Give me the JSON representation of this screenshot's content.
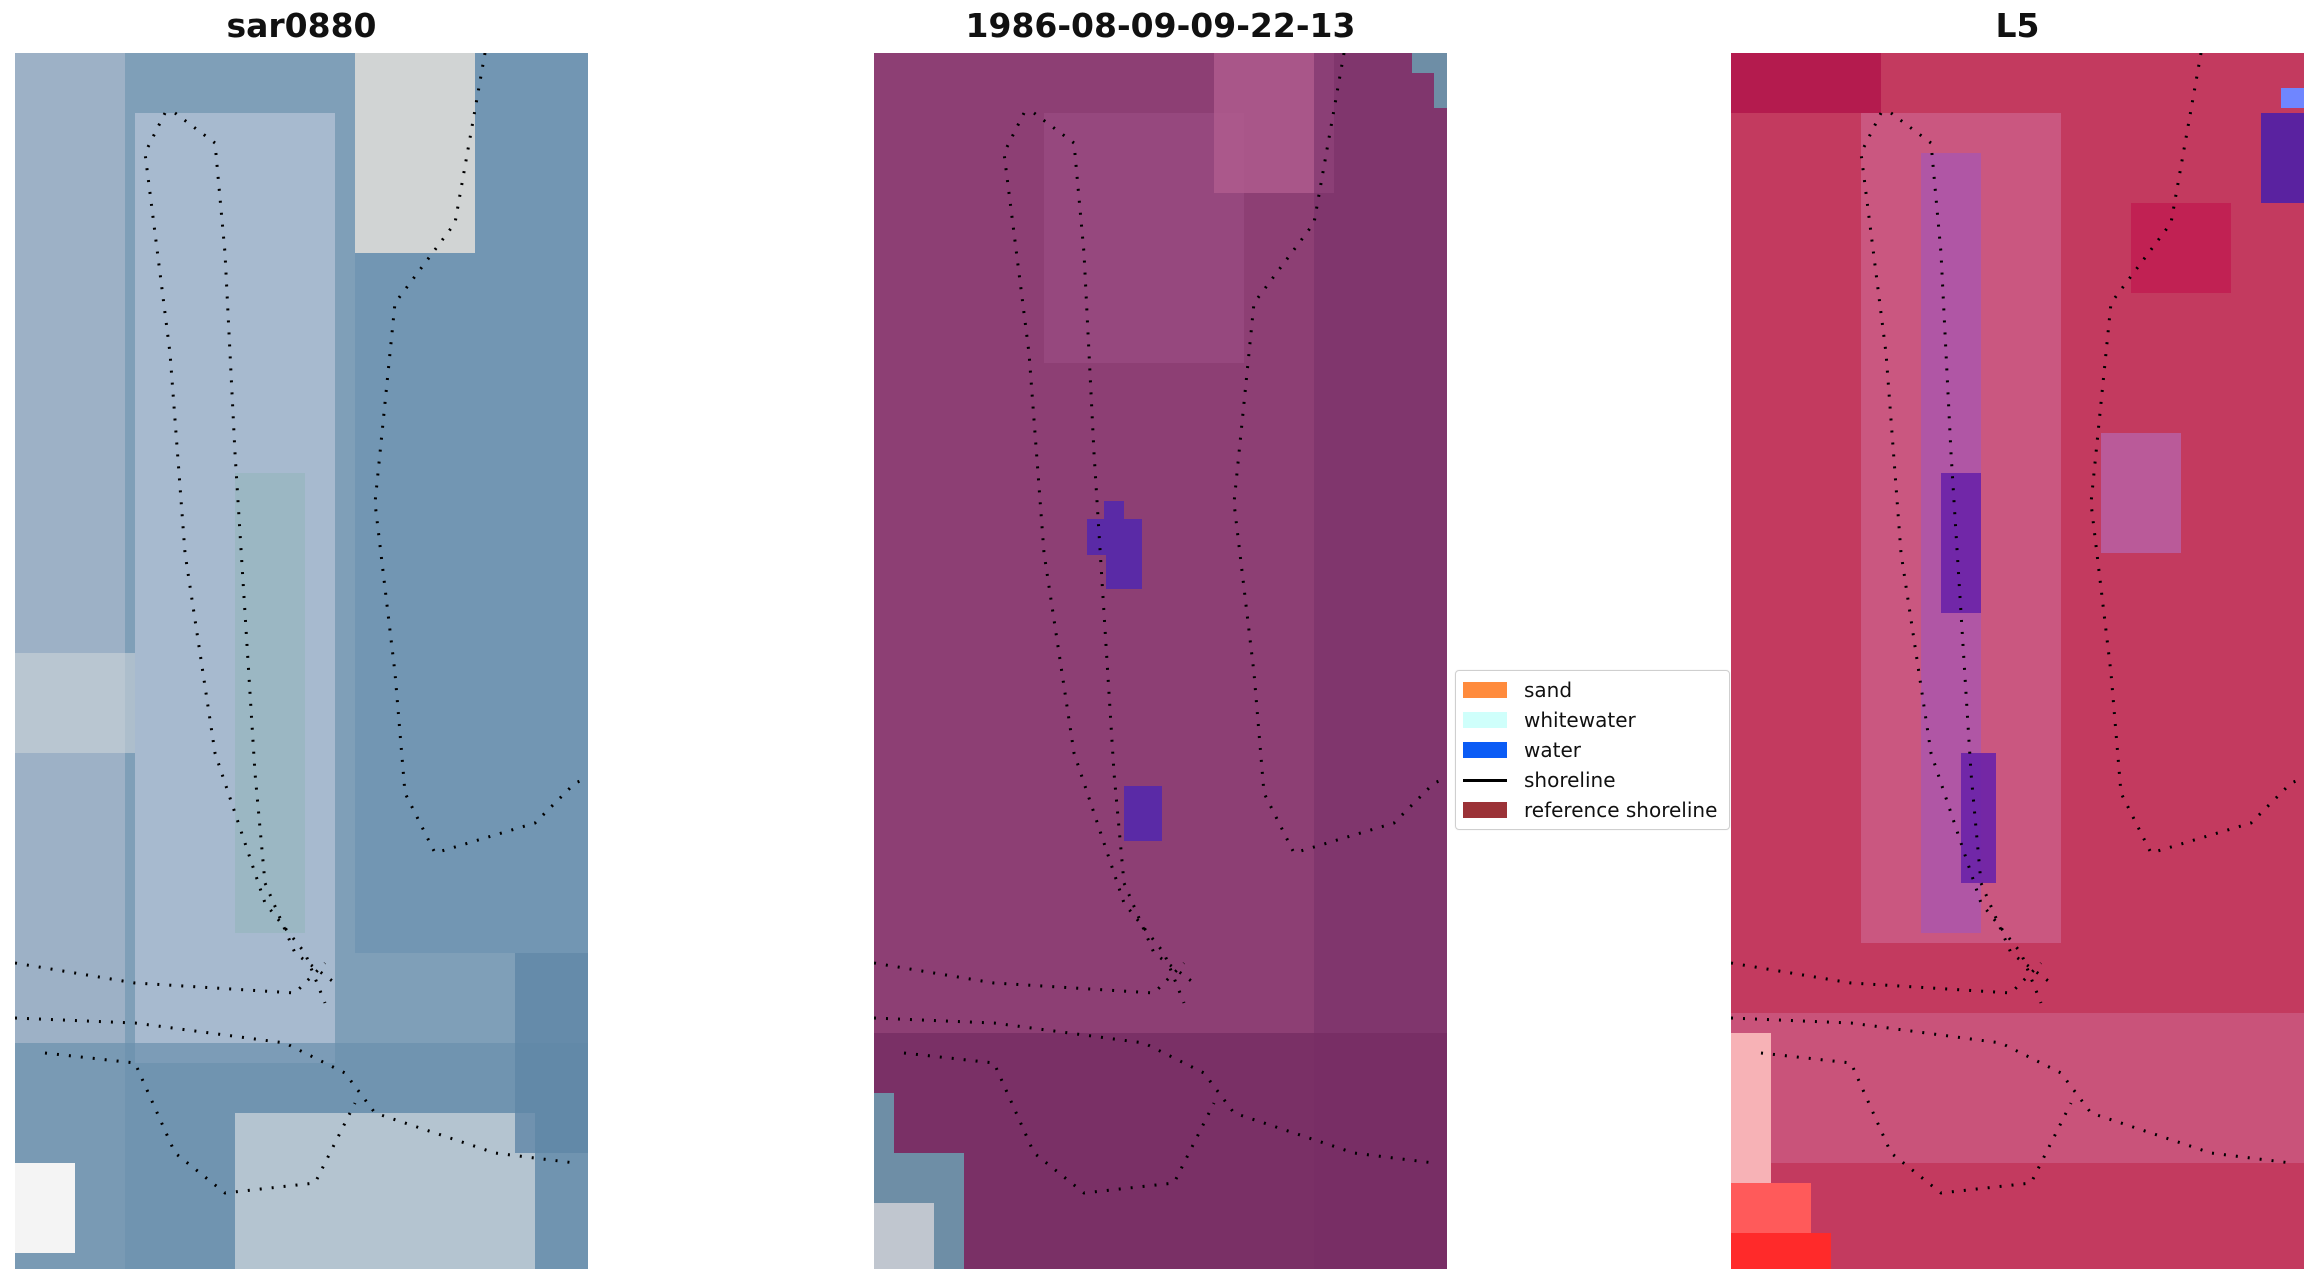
{
  "panels": [
    {
      "title": "sar0880",
      "base": "#7f9fb8",
      "hi": "#dfe6ee",
      "lo": "#5f86a6",
      "tint": "none"
    },
    {
      "title": "1986-08-09-09-22-13",
      "base": "#87386f",
      "hi": "#b05c8e",
      "lo": "#6e2c62",
      "tint": "purple"
    },
    {
      "title": "L5",
      "base": "#c33a5f",
      "hi": "#cf6b96",
      "lo": "#b0144a",
      "tint": "red"
    }
  ],
  "legend": {
    "items": [
      {
        "label": "sand",
        "color": "#ff8b3d",
        "kind": "patch"
      },
      {
        "label": "whitewater",
        "color": "#cffffb",
        "kind": "patch"
      },
      {
        "label": "water",
        "color": "#0b5cf5",
        "kind": "patch"
      },
      {
        "label": "shoreline",
        "color": "#000000",
        "kind": "line"
      },
      {
        "label": "reference shoreline",
        "color": "#9b3237",
        "kind": "patch"
      }
    ]
  }
}
